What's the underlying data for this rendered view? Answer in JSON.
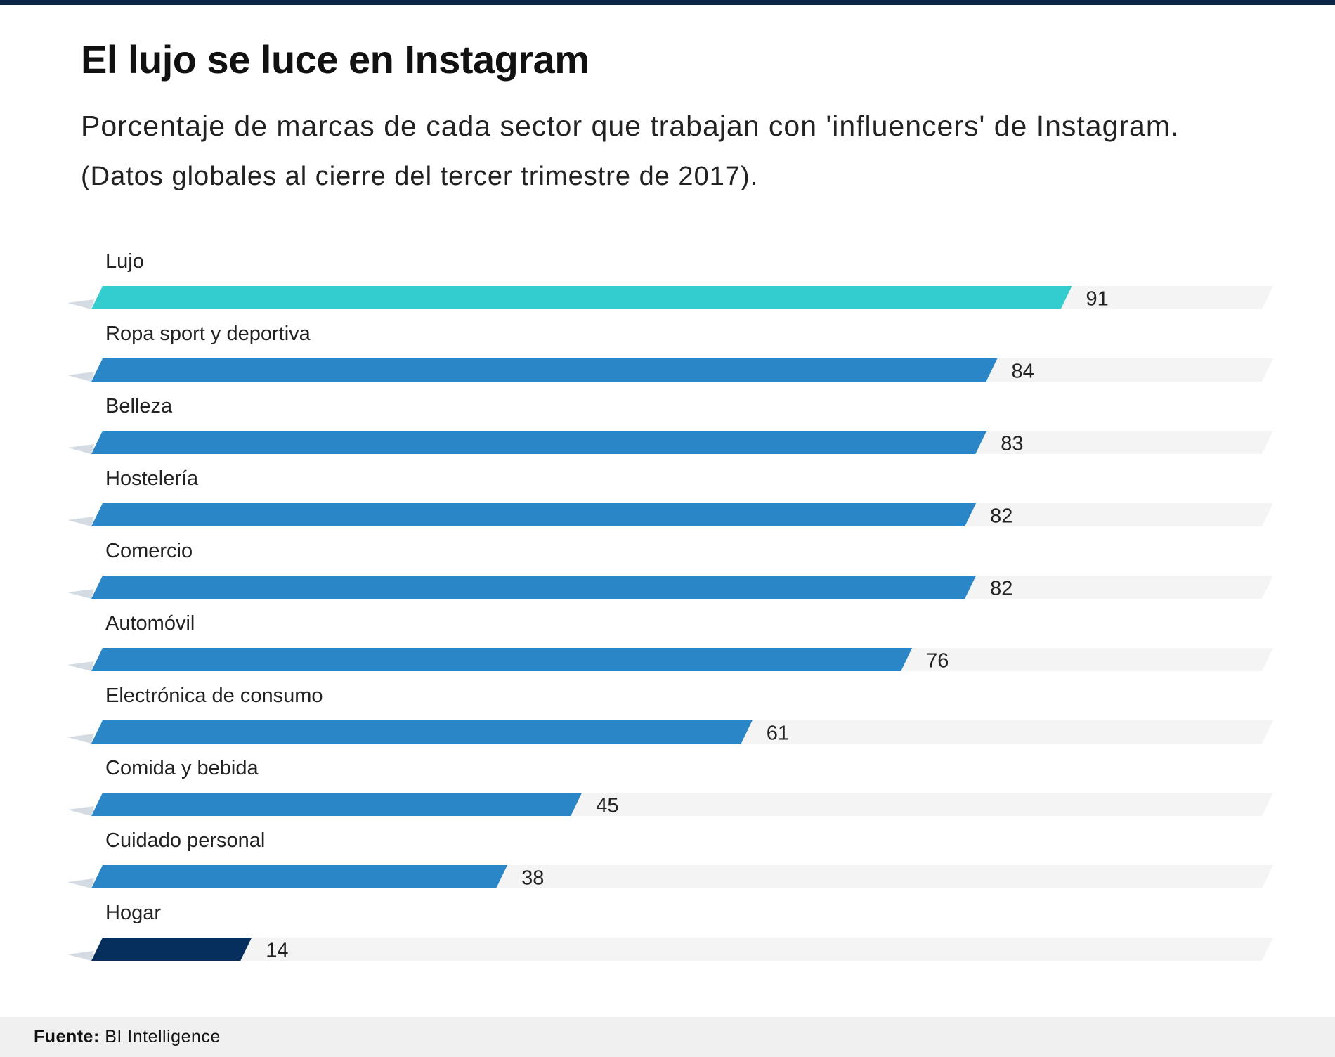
{
  "header": {
    "title": "El lujo se luce en Instagram",
    "subtitle": "Porcentaje de marcas de cada sector que trabajan con 'influencers' de Instagram.",
    "subtitle2": "(Datos globales al cierre del tercer trimestre de 2017)."
  },
  "footer": {
    "source_label": "Fuente:",
    "source_value": "BI Intelligence"
  },
  "colors": {
    "highlight": "#33cccf",
    "default": "#2b86c8",
    "lowest": "#062f5e",
    "track": "#f4f4f4",
    "top_rule": "#0b2545"
  },
  "chart_data": {
    "type": "bar",
    "orientation": "horizontal",
    "title": "El lujo se luce en Instagram",
    "xlabel": "",
    "ylabel": "",
    "xlim": [
      0,
      100
    ],
    "grid": false,
    "legend": "none",
    "categories": [
      "Lujo",
      "Ropa sport y deportiva",
      "Belleza",
      "Hostelería",
      "Comercio",
      "Automóvil",
      "Electrónica de consumo",
      "Comida y bebida",
      "Cuidado personal",
      "Hogar"
    ],
    "values": [
      91,
      84,
      83,
      82,
      82,
      76,
      61,
      45,
      38,
      14
    ],
    "bar_colors": [
      "highlight",
      "default",
      "default",
      "default",
      "default",
      "default",
      "default",
      "default",
      "default",
      "lowest"
    ]
  }
}
